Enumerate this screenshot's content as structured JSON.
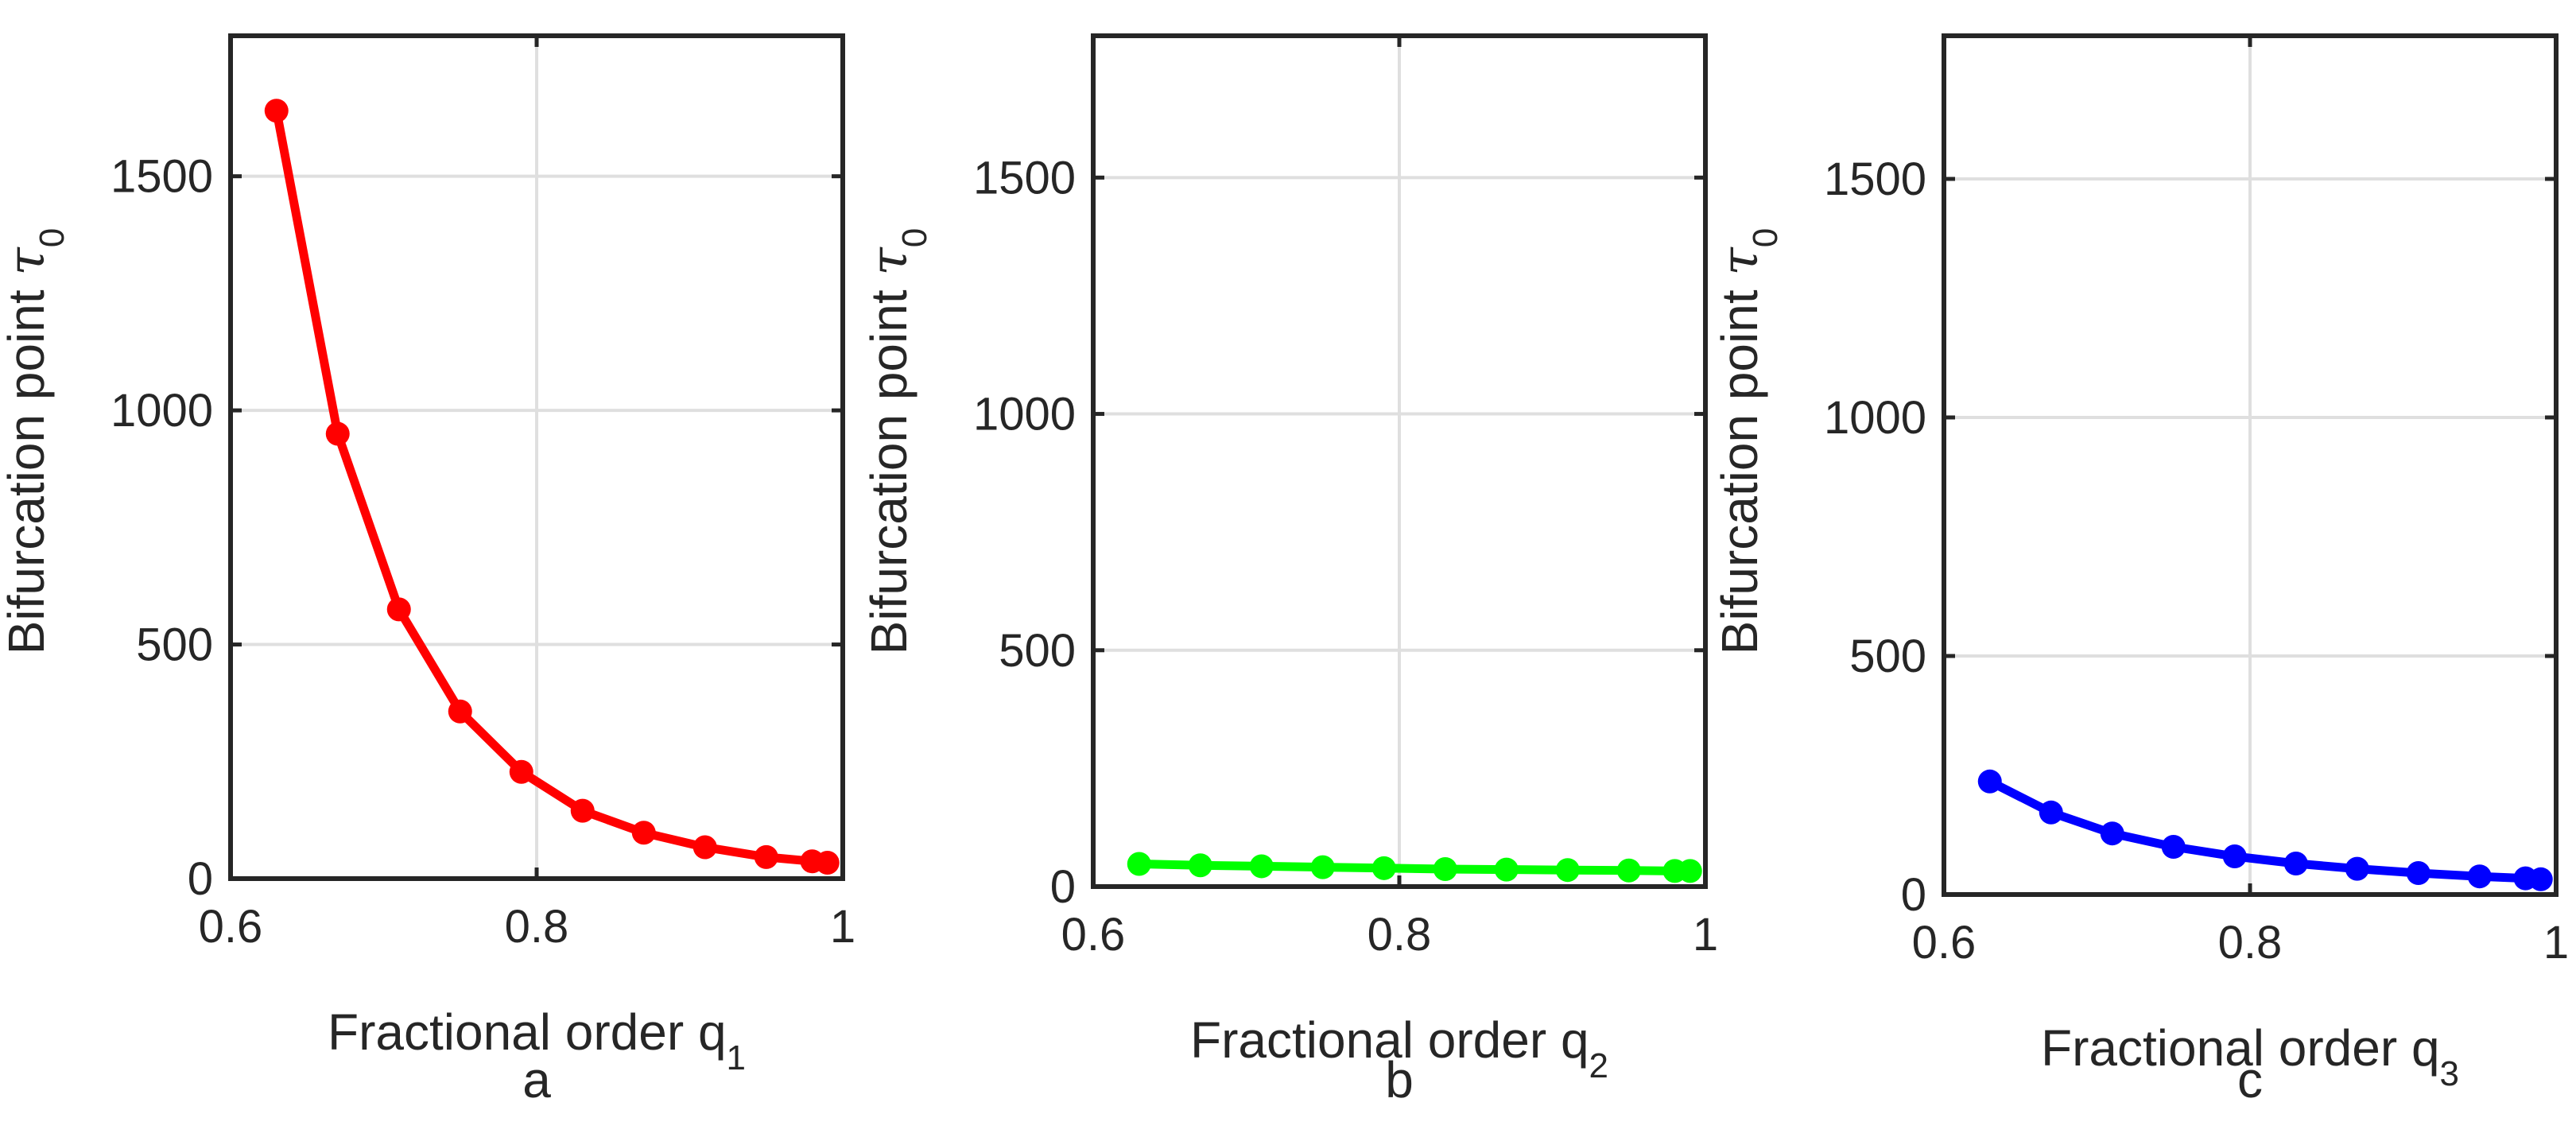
{
  "chart_data": [
    {
      "type": "line",
      "panel_label": "a",
      "xlabel": "Fractional order q",
      "xlabel_sub": "1",
      "ylabel": "Bifurcation point ",
      "ylabel_symbol": "τ",
      "ylabel_sub": "0",
      "xlim": [
        0.6,
        1.0
      ],
      "ylim": [
        0,
        1800
      ],
      "xticks": [
        0.6,
        0.8,
        1.0
      ],
      "xtick_labels": [
        "0.6",
        "0.8",
        "1"
      ],
      "yticks": [
        0,
        500,
        1000,
        1500
      ],
      "ytick_labels": [
        "0",
        "500",
        "1000",
        "1500"
      ],
      "grid": true,
      "color": "#ff0000",
      "x": [
        0.63,
        0.67,
        0.71,
        0.75,
        0.79,
        0.83,
        0.87,
        0.91,
        0.95,
        0.98,
        0.99
      ],
      "y": [
        1640,
        950,
        575,
        357,
        228,
        145,
        98,
        67,
        46,
        37,
        34
      ]
    },
    {
      "type": "line",
      "panel_label": "b",
      "xlabel": "Fractional order q",
      "xlabel_sub": "2",
      "ylabel": "Bifurcation point ",
      "ylabel_symbol": "τ",
      "ylabel_sub": "0",
      "xlim": [
        0.6,
        1.0
      ],
      "ylim": [
        0,
        1800
      ],
      "xticks": [
        0.6,
        0.8,
        1.0
      ],
      "xtick_labels": [
        "0.6",
        "0.8",
        "1"
      ],
      "yticks": [
        0,
        500,
        1000,
        1500
      ],
      "ytick_labels": [
        "0",
        "500",
        "1000",
        "1500"
      ],
      "grid": true,
      "color": "#00ff00",
      "x": [
        0.63,
        0.67,
        0.71,
        0.75,
        0.79,
        0.83,
        0.87,
        0.91,
        0.95,
        0.98,
        0.99
      ],
      "y": [
        48,
        45,
        43,
        41,
        39,
        37,
        36,
        35,
        34,
        33,
        33
      ]
    },
    {
      "type": "line",
      "panel_label": "c",
      "xlabel": "Fractional order q",
      "xlabel_sub": "3",
      "ylabel": "Bifurcation point ",
      "ylabel_symbol": "τ",
      "ylabel_sub": "0",
      "xlim": [
        0.6,
        1.0
      ],
      "ylim": [
        0,
        1800
      ],
      "xticks": [
        0.6,
        0.8,
        1.0
      ],
      "xtick_labels": [
        "0.6",
        "0.8",
        "1"
      ],
      "yticks": [
        0,
        500,
        1000,
        1500
      ],
      "ytick_labels": [
        "0",
        "500",
        "1000",
        "1500"
      ],
      "grid": true,
      "color": "#0000ff",
      "x": [
        0.63,
        0.67,
        0.71,
        0.75,
        0.79,
        0.83,
        0.87,
        0.91,
        0.95,
        0.98,
        0.99
      ],
      "y": [
        237,
        172,
        128,
        100,
        80,
        65,
        54,
        45,
        38,
        34,
        32
      ]
    }
  ]
}
